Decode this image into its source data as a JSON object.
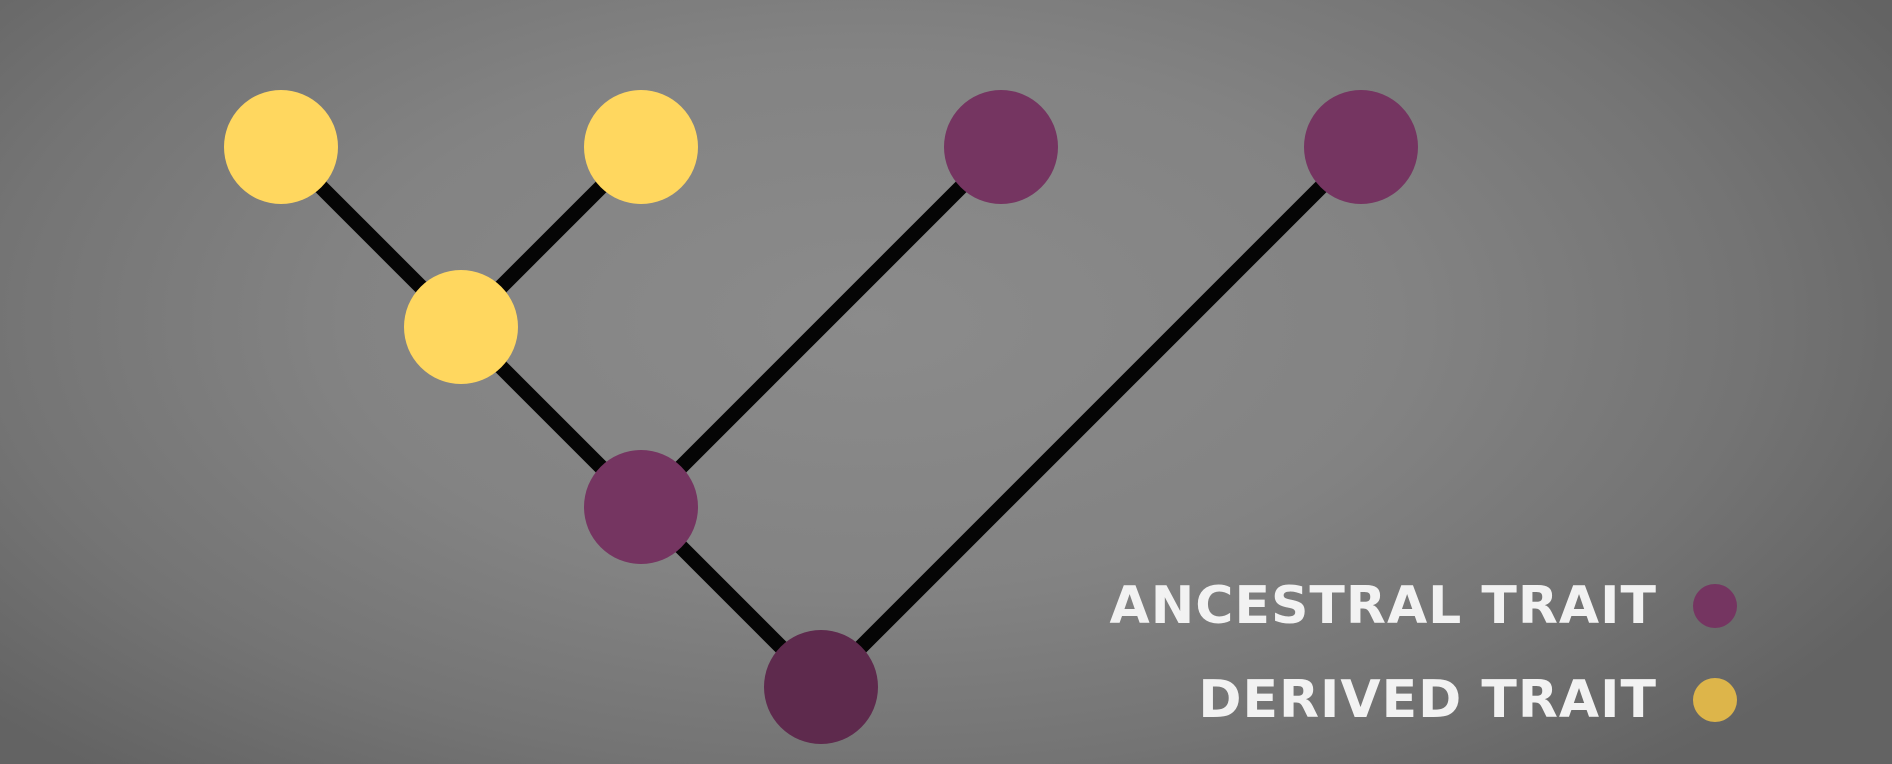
{
  "colors": {
    "ancestral": "#753561",
    "root": "#5e2a4d",
    "derived": "#ffd75f",
    "derived_swatch": "#ddb54a",
    "branch": "#050505"
  },
  "nodes": [
    {
      "id": "tip-1",
      "trait": "derived"
    },
    {
      "id": "tip-2",
      "trait": "derived"
    },
    {
      "id": "tip-3",
      "trait": "ancestral"
    },
    {
      "id": "tip-4",
      "trait": "ancestral"
    },
    {
      "id": "node-a",
      "trait": "derived"
    },
    {
      "id": "node-b",
      "trait": "ancestral"
    },
    {
      "id": "root",
      "trait": "ancestral"
    }
  ],
  "edges": [
    [
      "tip-1",
      "node-a"
    ],
    [
      "tip-2",
      "node-a"
    ],
    [
      "node-a",
      "node-b"
    ],
    [
      "tip-3",
      "node-b"
    ],
    [
      "node-b",
      "root"
    ],
    [
      "tip-4",
      "root"
    ]
  ],
  "legend": {
    "ancestral_label": "ANCESTRAL TRAIT",
    "derived_label": "DERIVED TRAIT"
  }
}
